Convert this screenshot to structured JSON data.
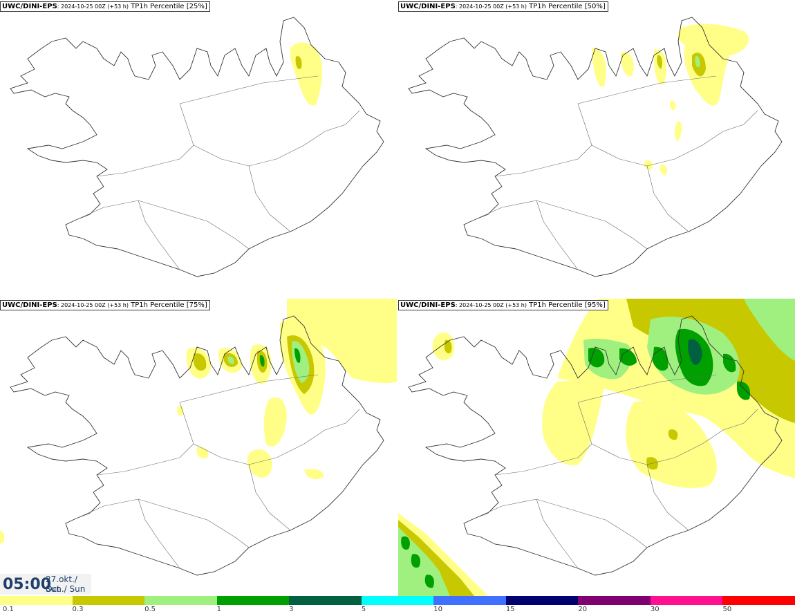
{
  "panels": [
    {
      "source": "UWC/DINI-EPS",
      "run": ": 2024-10-25 00Z (+53 h)",
      "field": " TP1h Percentile [25%]"
    },
    {
      "source": "UWC/DINI-EPS",
      "run": ": 2024-10-25 00Z (+53 h)",
      "field": " TP1h Percentile [50%]"
    },
    {
      "source": "UWC/DINI-EPS",
      "run": ": 2024-10-25 00Z (+53 h)",
      "field": " TP1h Percentile [75%]"
    },
    {
      "source": "UWC/DINI-EPS",
      "run": ": 2024-10-25 00Z (+53 h)",
      "field": " TP1h Percentile [95%]"
    }
  ],
  "timestamp": {
    "time": "05:00",
    "date": "27.okt./ Oct",
    "day": "Sun./ Sun"
  },
  "legend": {
    "ticks": [
      "0.1",
      "0.3",
      "0.5",
      "1",
      "3",
      "5",
      "10",
      "15",
      "20",
      "30",
      "50"
    ],
    "colors": [
      "#ffff88",
      "#c8c800",
      "#a0f080",
      "#00a000",
      "#006040",
      "#00ffff",
      "#4070ff",
      "#000070",
      "#800070",
      "#ff1090",
      "#ff0000"
    ]
  },
  "map_colors": {
    "coast": "#333333",
    "roads": "#666666"
  }
}
